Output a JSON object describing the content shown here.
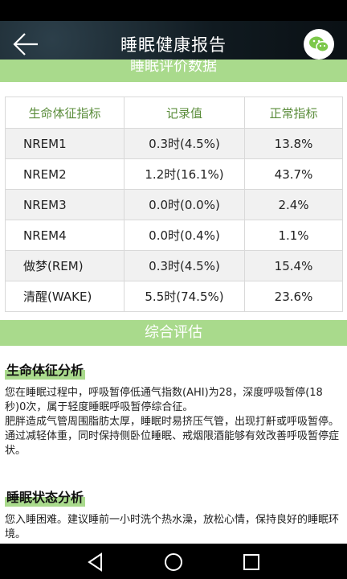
{
  "header": {
    "title": "睡眠健康报告"
  },
  "section_data": {
    "title": "睡眠评价数据"
  },
  "table": {
    "headers": [
      "生命体征指标",
      "记录值",
      "正常指标"
    ],
    "rows": [
      [
        "NREM1",
        "0.3时(4.5%)",
        "13.8%"
      ],
      [
        "NREM2",
        "1.2时(16.1%)",
        "43.7%"
      ],
      [
        "NREM3",
        "0.0时(0.0%)",
        "2.4%"
      ],
      [
        "NREM4",
        "0.0时(0.4%)",
        "1.1%"
      ],
      [
        "做梦(REM)",
        "0.3时(4.5%)",
        "15.4%"
      ],
      [
        "清醒(WAKE)",
        "5.5时(74.5%)",
        "23.6%"
      ]
    ]
  },
  "section_eval": {
    "title": "综合评估"
  },
  "vital": {
    "heading": "生命体征分析",
    "para1": "您在睡眠过程中，呼吸暂停低通气指数(AHI)为28，深度呼吸暂停(18秒)0次，属于轻度睡眠呼吸暂停综合征。",
    "para2": "肥胖造成气管周围脂肪太厚，睡眠时易挤压气管，出现打鼾或呼吸暂停。通过减轻体重，同时保持侧卧位睡眠、戒烟限酒能够有效改善呼吸暂停症状。"
  },
  "sleep_state": {
    "heading": "睡眠状态分析",
    "para": "您入睡困难。建议睡前一小时洗个热水澡，放松心情，保持良好的睡眠环境。"
  },
  "icons": {
    "back": "arrow-left-icon",
    "share": "wechat-icon",
    "nav_back": "triangle-back-icon",
    "nav_home": "circle-home-icon",
    "nav_recent": "square-recent-icon"
  },
  "colors": {
    "accent": "#a9da8c",
    "header_text": "#5a8c3a",
    "wechat": "#7cc84a"
  }
}
